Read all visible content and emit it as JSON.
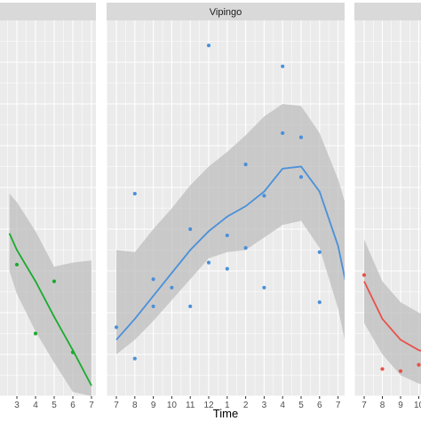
{
  "chart_data": {
    "type": "line",
    "xlabel": "Time",
    "ylabel": "",
    "panel_bg": "#ebebeb",
    "strip_bg": "#d9d9d9",
    "grid_color": "#ffffff",
    "ribbon_color": "#bdbdbd",
    "panels": [
      {
        "strip": "",
        "color": "#1aab2f",
        "x_ticks": [
          "3",
          "4",
          "5",
          "6",
          "7"
        ],
        "line": [
          [
            -0.4,
            0.78
          ],
          [
            0,
            0.7
          ],
          [
            1,
            0.55
          ],
          [
            2,
            0.38
          ],
          [
            3,
            0.22
          ],
          [
            4,
            0.05
          ]
        ],
        "ribbon_upper": [
          [
            -0.4,
            0.97
          ],
          [
            0,
            0.93
          ],
          [
            1,
            0.79
          ],
          [
            2,
            0.62
          ],
          [
            3,
            0.64
          ],
          [
            4,
            0.65
          ]
        ],
        "ribbon_lower": [
          [
            -0.4,
            0.6
          ],
          [
            0,
            0.49
          ],
          [
            1,
            0.31
          ],
          [
            2,
            0.16
          ],
          [
            3,
            0.02
          ],
          [
            4,
            0.0
          ]
        ],
        "points": [
          [
            0,
            0.63
          ],
          [
            1,
            0.3
          ],
          [
            2,
            0.55
          ],
          [
            3,
            0.21
          ]
        ]
      },
      {
        "strip": "Vipingo",
        "color": "#4a90d9",
        "x_ticks": [
          "7",
          "8",
          "9",
          "10",
          "11",
          "12",
          "1",
          "2",
          "3",
          "4",
          "5",
          "6",
          "7"
        ],
        "line": [
          [
            0,
            0.27
          ],
          [
            1,
            0.37
          ],
          [
            2,
            0.48
          ],
          [
            3,
            0.59
          ],
          [
            4,
            0.7
          ],
          [
            5,
            0.79
          ],
          [
            6,
            0.86
          ],
          [
            7,
            0.91
          ],
          [
            8,
            0.98
          ],
          [
            9,
            1.09
          ],
          [
            10,
            1.1
          ],
          [
            11,
            0.98
          ],
          [
            12,
            0.72
          ],
          [
            13,
            0.3
          ]
        ],
        "ribbon_upper": [
          [
            0,
            0.7
          ],
          [
            1,
            0.69
          ],
          [
            2,
            0.8
          ],
          [
            3,
            0.9
          ],
          [
            4,
            1.01
          ],
          [
            5,
            1.1
          ],
          [
            6,
            1.17
          ],
          [
            7,
            1.25
          ],
          [
            8,
            1.34
          ],
          [
            9,
            1.4
          ],
          [
            10,
            1.39
          ],
          [
            11,
            1.26
          ],
          [
            12,
            1.04
          ],
          [
            13,
            0.74
          ]
        ],
        "ribbon_lower": [
          [
            0,
            0.2
          ],
          [
            1,
            0.27
          ],
          [
            2,
            0.36
          ],
          [
            3,
            0.46
          ],
          [
            4,
            0.56
          ],
          [
            5,
            0.66
          ],
          [
            6,
            0.69
          ],
          [
            7,
            0.7
          ],
          [
            8,
            0.76
          ],
          [
            9,
            0.82
          ],
          [
            10,
            0.84
          ],
          [
            11,
            0.71
          ],
          [
            12,
            0.42
          ],
          [
            13,
            0.0
          ]
        ],
        "points": [
          [
            0,
            0.33
          ],
          [
            1,
            0.97
          ],
          [
            1,
            0.18
          ],
          [
            2,
            0.56
          ],
          [
            2,
            0.43
          ],
          [
            3,
            0.52
          ],
          [
            4,
            0.43
          ],
          [
            4,
            0.8
          ],
          [
            5,
            1.68
          ],
          [
            5,
            0.64
          ],
          [
            6,
            0.61
          ],
          [
            6,
            0.77
          ],
          [
            7,
            1.11
          ],
          [
            7,
            0.71
          ],
          [
            8,
            0.96
          ],
          [
            8,
            0.52
          ],
          [
            9,
            1.58
          ],
          [
            9,
            1.26
          ],
          [
            10,
            1.24
          ],
          [
            10,
            1.05
          ],
          [
            11,
            0.69
          ],
          [
            11,
            0.45
          ]
        ]
      },
      {
        "strip": "",
        "color": "#e8504a",
        "x_ticks": [
          "7",
          "8",
          "9",
          "10"
        ],
        "line": [
          [
            0,
            0.55
          ],
          [
            1,
            0.37
          ],
          [
            2,
            0.27
          ],
          [
            3,
            0.22
          ],
          [
            4,
            0.2
          ]
        ],
        "ribbon_upper": [
          [
            0,
            0.75
          ],
          [
            1,
            0.55
          ],
          [
            2,
            0.45
          ],
          [
            3,
            0.4
          ],
          [
            4,
            0.38
          ]
        ],
        "ribbon_lower": [
          [
            0,
            0.35
          ],
          [
            1,
            0.2
          ],
          [
            2,
            0.1
          ],
          [
            3,
            0.06
          ],
          [
            4,
            0.04
          ]
        ],
        "points": [
          [
            0,
            0.58
          ],
          [
            1,
            0.13
          ],
          [
            2,
            0.12
          ],
          [
            3,
            0.15
          ]
        ]
      }
    ]
  }
}
